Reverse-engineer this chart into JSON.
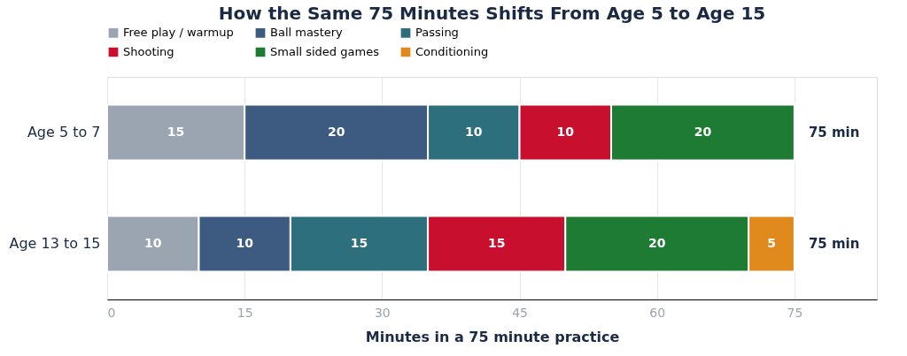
{
  "chart_data": {
    "type": "bar",
    "orientation": "horizontal",
    "stacked": true,
    "title": "How the Same 75 Minutes Shifts From Age 5 to Age 15",
    "xlabel": "Minutes in a 75 minute practice",
    "categories": [
      "Age 5 to 7",
      "Age 13 to 15"
    ],
    "series": [
      {
        "name": "Free play / warmup",
        "color": "#9aa5b1",
        "values": [
          15,
          10
        ]
      },
      {
        "name": "Ball mastery",
        "color": "#3d5a80",
        "values": [
          20,
          10
        ]
      },
      {
        "name": "Passing",
        "color": "#2e6f7e",
        "values": [
          10,
          15
        ]
      },
      {
        "name": "Shooting",
        "color": "#c8102e",
        "values": [
          10,
          15
        ]
      },
      {
        "name": "Small sided games",
        "color": "#1e7b34",
        "values": [
          20,
          20
        ]
      },
      {
        "name": "Conditioning",
        "color": "#e08a1e",
        "values": [
          null,
          5
        ]
      }
    ],
    "xlim": [
      0,
      84
    ],
    "xticks": [
      0,
      15,
      30,
      45,
      60,
      75
    ],
    "grid": "x",
    "legend": "top",
    "data_labels": true,
    "totals": [
      "75 min",
      "75 min"
    ]
  }
}
